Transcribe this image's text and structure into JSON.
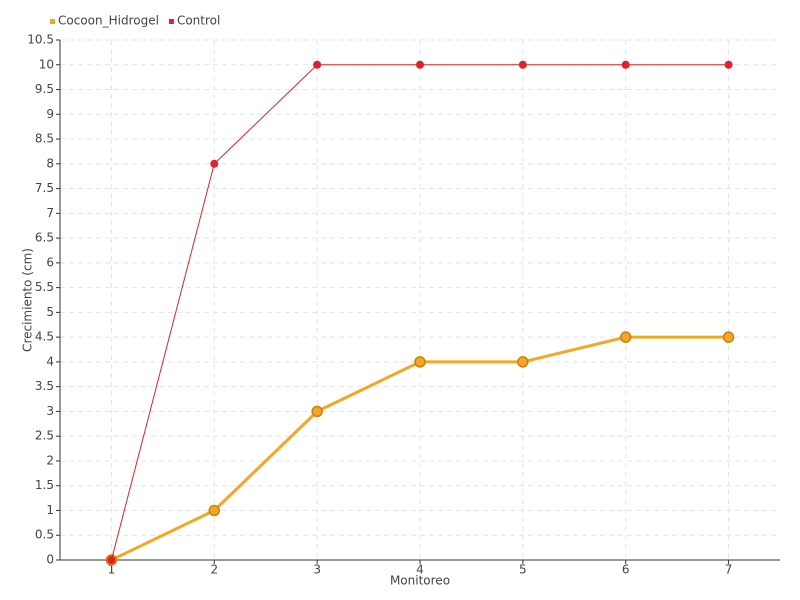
{
  "chart_data": {
    "type": "line",
    "x_label": "Monitoreo",
    "y_label": "Crecimiento (cm)",
    "x": [
      1,
      2,
      3,
      4,
      5,
      6,
      7
    ],
    "xlim": [
      0.5,
      7.5
    ],
    "xticks": [
      1,
      2,
      3,
      4,
      5,
      6,
      7
    ],
    "ylim": [
      0,
      10.5
    ],
    "yticks": [
      0,
      0.5,
      1,
      1.5,
      2,
      2.5,
      3,
      3.5,
      4,
      4.5,
      5,
      5.5,
      6,
      6.5,
      7,
      7.5,
      8,
      8.5,
      9,
      9.5,
      10,
      10.5
    ],
    "grid": true,
    "legend": "top-left",
    "series": [
      {
        "name": "Cocoon_Hidrogel",
        "color": "#f5a623",
        "values": [
          0,
          1,
          3,
          4,
          4,
          4.5,
          4.5
        ]
      },
      {
        "name": "Control",
        "color": "#e0202a",
        "values": [
          0,
          8,
          10,
          10,
          10,
          10,
          10
        ]
      }
    ]
  }
}
